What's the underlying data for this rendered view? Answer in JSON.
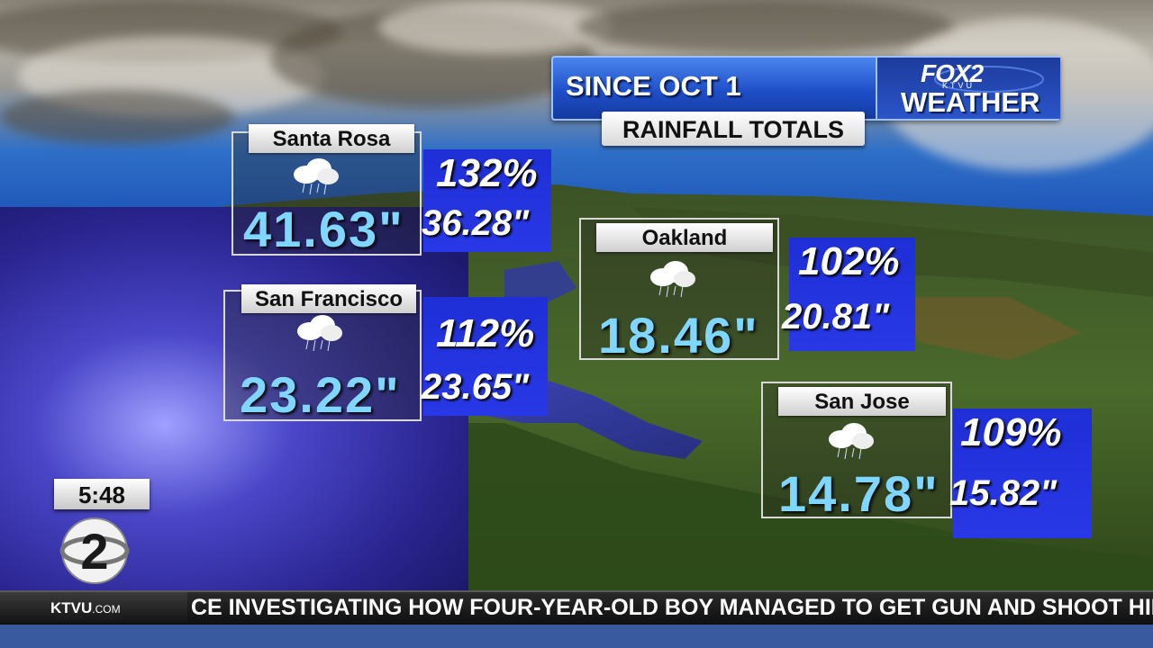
{
  "header": {
    "title": "SINCE OCT 1",
    "subtitle": "RAINFALL TOTALS",
    "brand_fox": "FOX2",
    "brand_ktvu": "KTVU",
    "brand_weather": "WEATHER"
  },
  "cities": [
    {
      "name": "Santa Rosa",
      "total": "41.63\"",
      "percent": "132%",
      "normal": "36.28\""
    },
    {
      "name": "San Francisco",
      "total": "23.22\"",
      "percent": "112%",
      "normal": "23.65\""
    },
    {
      "name": "Oakland",
      "total": "18.46\"",
      "percent": "102%",
      "normal": "20.81\""
    },
    {
      "name": "San Jose",
      "total": "14.78\"",
      "percent": "109%",
      "normal": "15.82\""
    }
  ],
  "clock": "5:48",
  "ticker": {
    "brand": "KTVU",
    "brand_suffix": ".COM",
    "text": "CE INVESTIGATING HOW FOUR-YEAR-OLD BOY MANAGED TO GET GUN AND SHOOT HIMSELF"
  },
  "colors": {
    "total_text": "#7fd6ff",
    "stat_box": "#2433dc",
    "header_blue": "#1f4fc8"
  },
  "icons": {
    "weather_icon": "rain-cloud-icon",
    "station_logo": "fox2-logo-icon"
  }
}
